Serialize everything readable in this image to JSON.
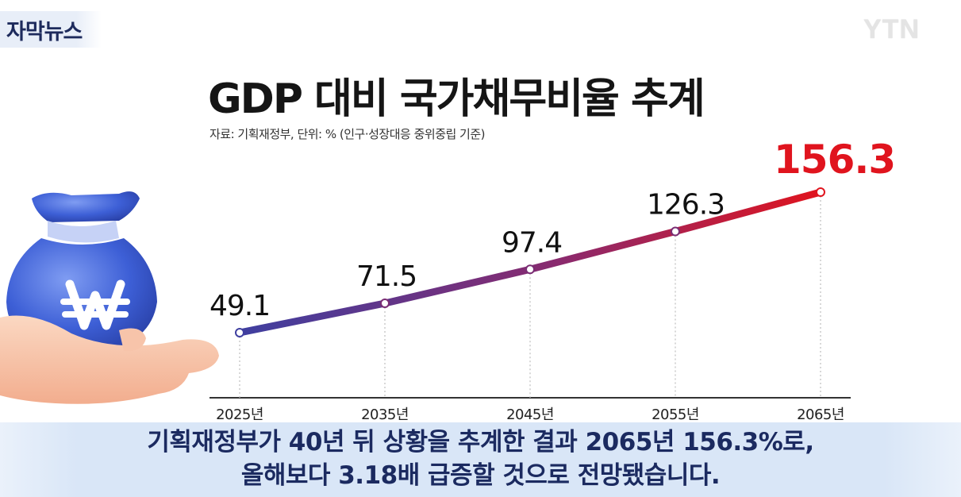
{
  "tag": {
    "label": "자막뉴스"
  },
  "logo": {
    "text": "YTN"
  },
  "caption": {
    "line1": "기획재정부가 40년 뒤 상황을 추계한 결과 2065년 156.3%로,",
    "line2": "올해보다 3.18배 급증할 것으로 전망됐습니다."
  },
  "colors": {
    "line_start": "#3f3fa0",
    "line_end": "#e0141e",
    "highlight_label": "#e0141e",
    "caption_text": "#1b2a60"
  },
  "icons": [
    "money-bag-icon",
    "won-sign-icon",
    "hand-icon"
  ],
  "chart_data": {
    "type": "line",
    "title": "GDP 대비 국가채무비율 추계",
    "subtitle": "자료: 기획재정부, 단위: % (인구·성장대응 중위중립 기준)",
    "categories": [
      "2025년",
      "2035년",
      "2045년",
      "2055년",
      "2065년"
    ],
    "values": [
      49.1,
      71.5,
      97.4,
      126.3,
      156.3
    ],
    "value_labels": [
      "49.1",
      "71.5",
      "97.4",
      "126.3",
      "156.3"
    ],
    "ylim": [
      0,
      180
    ],
    "grid": "vertical dotted lines at each category",
    "highlight_last": true
  }
}
